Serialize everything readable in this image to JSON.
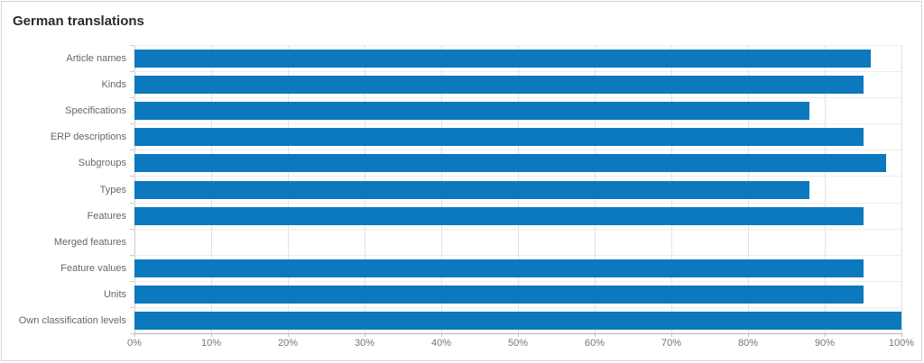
{
  "panel": {
    "title": "German translations"
  },
  "chart_data": {
    "type": "bar",
    "orientation": "horizontal",
    "title": "German translations",
    "xlabel": "",
    "ylabel": "",
    "categories": [
      "Article names",
      "Kinds",
      "Specifications",
      "ERP descriptions",
      "Subgroups",
      "Types",
      "Features",
      "Merged features",
      "Feature values",
      "Units",
      "Own classification levels"
    ],
    "values": [
      96,
      95,
      88,
      95,
      98,
      88,
      95,
      0,
      95,
      95,
      100
    ],
    "value_unit": "%",
    "xlim": [
      0,
      100
    ],
    "x_ticks": [
      "0%",
      "10%",
      "20%",
      "30%",
      "40%",
      "50%",
      "60%",
      "70%",
      "80%",
      "90%",
      "100%"
    ],
    "grid": true,
    "legend": null,
    "bar_color": "#0c78bd"
  },
  "colors": {
    "bar": "#0c78bd",
    "gridline": "#e2e2e2",
    "row_separator": "#ededed",
    "x_axis_line": "#b3b3b3",
    "y_axis_line": "#cccccc",
    "panel_border": "#d5d5d5",
    "title_text": "#2b2b2b",
    "label_text": "#666666",
    "tick_text": "#767676"
  }
}
